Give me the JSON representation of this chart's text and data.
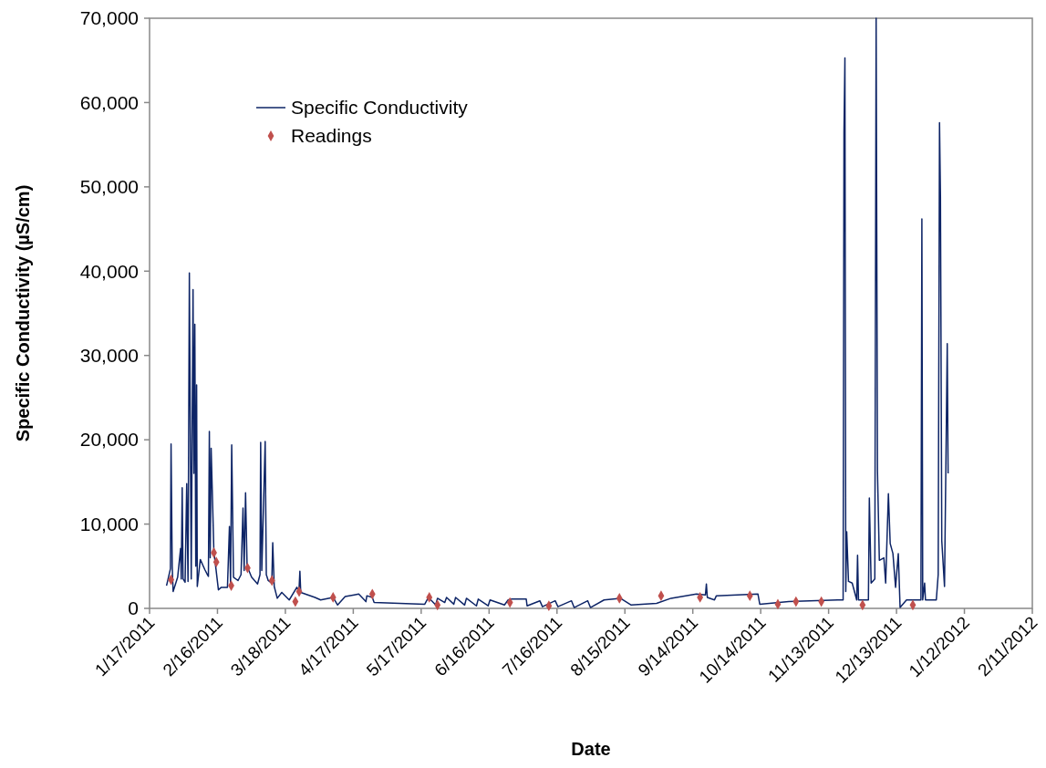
{
  "chart_data": {
    "type": "line",
    "xlabel": "Date",
    "ylabel": "Specific Conductivity (µS/cm)",
    "xlim": [
      "2011-01-17",
      "2012-02-11"
    ],
    "ylim": [
      0,
      70000
    ],
    "xticks": [
      {
        "value": "2011-01-17",
        "label": "1/17/2011"
      },
      {
        "value": "2011-02-16",
        "label": "2/16/2011"
      },
      {
        "value": "2011-03-18",
        "label": "3/18/2011"
      },
      {
        "value": "2011-04-17",
        "label": "4/17/2011"
      },
      {
        "value": "2011-05-17",
        "label": "5/17/2011"
      },
      {
        "value": "2011-06-16",
        "label": "6/16/2011"
      },
      {
        "value": "2011-07-16",
        "label": "7/16/2011"
      },
      {
        "value": "2011-08-15",
        "label": "8/15/2011"
      },
      {
        "value": "2011-09-14",
        "label": "9/14/2011"
      },
      {
        "value": "2011-10-14",
        "label": "10/14/2011"
      },
      {
        "value": "2011-11-13",
        "label": "11/13/2011"
      },
      {
        "value": "2011-12-13",
        "label": "12/13/2011"
      },
      {
        "value": "2012-01-12",
        "label": "1/12/2012"
      },
      {
        "value": "2012-02-11",
        "label": "2/11/2012"
      }
    ],
    "yticks": [
      0,
      {
        "value": 10000,
        "label": "10,000"
      },
      {
        "value": 20000,
        "label": "20,000"
      },
      {
        "value": 30000,
        "label": "30,000"
      },
      {
        "value": 40000,
        "label": "40,000"
      },
      {
        "value": 50000,
        "label": "50,000"
      },
      {
        "value": 60000,
        "label": "60,000"
      },
      {
        "value": 70000,
        "label": "70,000"
      }
    ],
    "grid": false,
    "legend": "top left",
    "line_style": "solid",
    "series": [
      {
        "name": "Specific Conductivity",
        "color": "#0d2466",
        "marker": "none",
        "x": [
          "2011-01-24T12:00",
          "2011-01-26T05:00",
          "2011-01-26T12:00",
          "2011-01-27",
          "2011-01-27T10:00",
          "2011-01-29T10:00",
          "2011-01-30T17:00",
          "2011-01-31",
          "2011-01-31T10:00",
          "2011-01-31T19:00",
          "2011-02-01T17:00",
          "2011-02-02T10:00",
          "2011-02-03",
          "2011-02-03T14:00",
          "2011-02-04T10:00",
          "2011-02-05T05:00",
          "2011-02-05T14:00",
          "2011-02-06",
          "2011-02-06T10:00",
          "2011-02-06T19:00",
          "2011-02-07T02:00",
          "2011-02-08T10:00",
          "2011-02-10T10:00",
          "2011-02-11T14:00",
          "2011-02-12",
          "2011-02-12T10:00",
          "2011-02-12T19:00",
          "2011-02-13T05:00",
          "2011-02-14T10:00",
          "2011-02-15T10:00",
          "2011-02-16T10:00",
          "2011-02-17T17:00",
          "2011-02-20T10:00",
          "2011-02-21T07:00",
          "2011-02-21T19:00",
          "2011-02-22T07:00",
          "2011-02-23T02:00",
          "2011-02-25T02:00",
          "2011-02-26T10:00",
          "2011-02-27T07:00",
          "2011-02-27T19:00",
          "2011-02-28T10:00",
          "2011-03-01T02:00",
          "2011-03-03T02:00",
          "2011-03-05T17:00",
          "2011-03-06T19:00",
          "2011-03-07T02:00",
          "2011-03-07T14:00",
          "2011-03-09T02:00",
          "2011-03-09T14:00",
          "2011-03-10T10:00",
          "2011-03-12",
          "2011-03-12T10:00",
          "2011-03-13T02:00",
          "2011-03-14T10:00",
          "2011-03-16T10:00",
          "2011-03-19T17:00",
          "2011-03-23T02:00",
          "2011-03-24",
          "2011-03-24T10:00",
          "2011-03-24T19:00",
          "2011-03-31T02:00",
          "2011-04-02T14:00",
          "2011-04-08T02:00",
          "2011-04-10T02:00",
          "2011-04-13T10:00",
          "2011-04-17T10:00",
          "2011-04-19T10:00",
          "2011-04-22T14:00",
          "2011-04-23",
          "2011-04-25T10:00",
          "2011-04-26T05:00",
          "2011-05-07T10:00",
          "2011-05-18T14:00",
          "2011-05-20T05:00",
          "2011-05-23T10:00",
          "2011-05-24T05:00",
          "2011-05-27T10:00",
          "2011-05-28T05:00",
          "2011-05-31T10:00",
          "2011-06-01T05:00",
          "2011-06-05T05:00",
          "2011-06-06",
          "2011-06-10T10:00",
          "2011-06-11T05:00",
          "2011-06-15T14:00",
          "2011-06-16T10:00",
          "2011-06-22T19:00",
          "2011-06-24T10:00",
          "2011-06-26",
          "2011-07-02T10:00",
          "2011-07-02T19:00",
          "2011-07-08T10:00",
          "2011-07-09T14:00",
          "2011-07-15T05:00",
          "2011-07-16T10:00",
          "2011-07-22T10:00",
          "2011-07-23T14:00",
          "2011-07-29T14:00",
          "2011-07-30T19:00",
          "2011-08-05T19:00",
          "2011-08-13",
          "2011-08-17T19:00",
          "2011-08-29",
          "2011-09-04T10:00",
          "2011-09-15T14:00",
          "2011-09-19T14:00",
          "2011-09-20",
          "2011-09-20T10:00",
          "2011-09-23T14:00",
          "2011-09-24T10:00",
          "2011-10-12T19:00",
          "2011-10-13T14:00",
          "2011-10-26T10:00",
          "2011-11-17",
          "2011-11-19T10:00",
          "2011-11-19T19:00",
          "2011-11-20T05:00",
          "2011-11-20T14:00",
          "2011-11-21",
          "2011-11-21T19:00",
          "2011-11-23T10:00",
          "2011-11-25T10:00",
          "2011-11-25T19:00",
          "2011-11-26T05:00",
          "2011-11-30T14:00",
          "2011-12-01",
          "2011-12-01T19:00",
          "2011-12-03T10:00",
          "2011-12-04",
          "2011-12-04T14:00",
          "2011-12-05T10:00",
          "2011-12-07T10:00",
          "2011-12-08T05:00",
          "2011-12-09T10:00",
          "2011-12-10T05:00",
          "2011-12-11T10:00",
          "2011-12-12T14:00",
          "2011-12-13T19:00",
          "2011-12-14T14:00",
          "2011-12-17T10:00",
          "2011-12-23T19:00",
          "2011-12-24T05:00",
          "2011-12-24T14:00",
          "2011-12-25T10:00",
          "2011-12-25T19:00",
          "2011-12-30T14:00",
          "2011-12-31T10:00",
          "2012-01-01",
          "2012-01-01T10:00",
          "2012-01-02",
          "2012-01-03T05:00",
          "2012-01-04T10:00",
          "2012-01-04T19:00"
        ],
        "values": [
          2700,
          4700,
          19500,
          5000,
          2000,
          3700,
          7100,
          3500,
          14300,
          3500,
          3100,
          14800,
          3200,
          39800,
          3500,
          37800,
          16000,
          33700,
          5000,
          26500,
          2600,
          5800,
          4600,
          4000,
          3800,
          21000,
          6000,
          19000,
          6700,
          4500,
          2200,
          2500,
          2500,
          9700,
          3000,
          19400,
          3700,
          3300,
          4000,
          11900,
          4500,
          13700,
          5000,
          3700,
          2900,
          4000,
          19700,
          4500,
          19800,
          4000,
          3300,
          3000,
          7800,
          2600,
          1200,
          1900,
          1000,
          2500,
          2000,
          4400,
          1900,
          1300,
          1000,
          1300,
          400,
          1400,
          1600,
          1700,
          800,
          1500,
          1300,
          700,
          600,
          500,
          1300,
          400,
          1200,
          700,
          1300,
          500,
          1300,
          400,
          1200,
          300,
          1100,
          300,
          1000,
          400,
          1000,
          1100,
          1100,
          300,
          900,
          200,
          900,
          200,
          900,
          100,
          900,
          100,
          1000,
          1200,
          400,
          600,
          1200,
          1700,
          1600,
          2900,
          1300,
          1000,
          1500,
          1700,
          500,
          800,
          1000,
          1000,
          56500,
          65300,
          2000,
          9100,
          3200,
          3000,
          1000,
          6300,
          1000,
          1000,
          13100,
          3000,
          3500,
          70000,
          16300,
          5700,
          6000,
          3000,
          13600,
          7700,
          6500,
          2500,
          6500,
          100,
          1000,
          1000,
          46200,
          1000,
          3000,
          1000,
          1000,
          4000,
          57600,
          48800,
          8000,
          2600,
          31400,
          16000
        ]
      },
      {
        "name": "Readings",
        "type": "scatter",
        "color": "#c0504d",
        "marker": "diamond",
        "x": [
          "2011-01-26T12:00",
          "2011-02-14T10:00",
          "2011-02-15T12:00",
          "2011-02-22T02:00",
          "2011-03-01T07:00",
          "2011-03-12T02:00",
          "2011-03-22T10:00",
          "2011-03-24T02:00",
          "2011-04-08T02:00",
          "2011-04-25T10:00",
          "2011-05-20T14:00",
          "2011-05-24T05:00",
          "2011-06-25T05:00",
          "2011-07-12T10:00",
          "2011-08-12T14:00",
          "2011-08-31",
          "2011-09-17T05:00",
          "2011-10-09T05:00",
          "2011-10-21T14:00",
          "2011-10-29T14:00",
          "2011-11-09T19:00",
          "2011-11-28",
          "2011-12-20T05:00"
        ],
        "values": [
          3400,
          6600,
          5500,
          2700,
          4800,
          3300,
          800,
          2000,
          1300,
          1700,
          1300,
          400,
          700,
          300,
          1200,
          1500,
          1300,
          1500,
          500,
          800,
          800,
          400,
          400
        ]
      }
    ]
  }
}
